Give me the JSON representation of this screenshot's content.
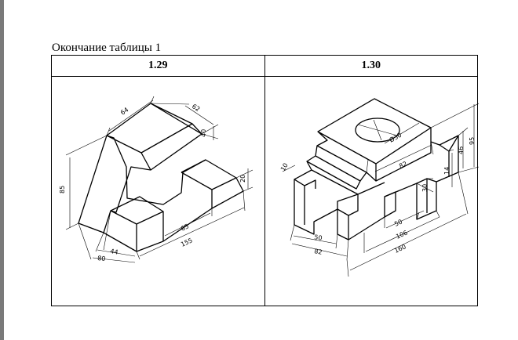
{
  "caption": "Окончание таблицы 1",
  "columns": [
    {
      "label": "1.29"
    },
    {
      "label": "1.30"
    }
  ],
  "drawing_129": {
    "dims": {
      "d64": "64",
      "d62": "62",
      "d40": "40",
      "d85": "85",
      "d20": "20",
      "d65": "65",
      "d155": "155",
      "d44": "44",
      "d80": "80"
    }
  },
  "drawing_130": {
    "dims": {
      "d30": "Ø30",
      "d10": "10",
      "d82top": "82",
      "d30b": "30",
      "d14": "14",
      "d46": "46",
      "d95": "95",
      "d50l": "50",
      "d82l": "82",
      "d50r": "50",
      "d106": "106",
      "d160": "160"
    }
  }
}
